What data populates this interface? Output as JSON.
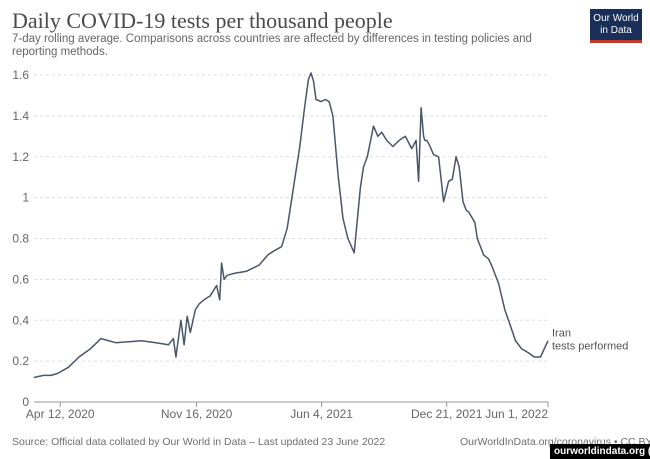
{
  "header": {
    "title": "Daily COVID-19 tests per thousand people",
    "subtitle": "7-day rolling average. Comparisons across countries are affected by differences in testing policies and reporting methods."
  },
  "logo": {
    "line1": "Our World",
    "line2": "in Data"
  },
  "footer": {
    "source": "Source: Official data collated by Our World in Data – Last updated 23 June 2022",
    "credit": "OurWorldInData.org/coronavirus • CC BY",
    "watermark": "ourworldindata.org ()"
  },
  "colors": {
    "line": "#4b5569",
    "grid": "#dddddd",
    "title": "#4a4a4a",
    "logo_bg": "#1a2e5a",
    "logo_accent": "#c0392b"
  },
  "chart_data": {
    "type": "line",
    "grid": true,
    "ylim": [
      0,
      1.6
    ],
    "yticks": [
      0,
      0.2,
      0.4,
      0.6,
      0.8,
      1,
      1.2,
      1.4,
      1.6
    ],
    "ytick_labels": [
      "0",
      "0.2",
      "0.4",
      "0.6",
      "0.8",
      "1",
      "1.2",
      "1.4",
      "1.6"
    ],
    "xlim": [
      "2020-03-01",
      "2022-06-01"
    ],
    "xticks": [
      "2020-04-12",
      "2020-11-16",
      "2021-06-04",
      "2021-12-21",
      "2022-06-01"
    ],
    "xtick_labels": [
      "Apr 12, 2020",
      "Nov 16, 2020",
      "Jun 4, 2021",
      "Dec 21, 2021",
      "Jun 1, 2022"
    ],
    "series": [
      {
        "name": "Iran",
        "label_line2": "tests performed",
        "x": [
          "2020-03-01",
          "2020-03-16",
          "2020-03-28",
          "2020-04-08",
          "2020-04-25",
          "2020-05-12",
          "2020-05-30",
          "2020-06-16",
          "2020-07-10",
          "2020-08-20",
          "2020-09-12",
          "2020-10-02",
          "2020-10-10",
          "2020-10-14",
          "2020-10-18",
          "2020-10-22",
          "2020-10-27",
          "2020-11-01",
          "2020-11-06",
          "2020-11-14",
          "2020-11-20",
          "2020-11-28",
          "2020-12-08",
          "2020-12-18",
          "2020-12-23",
          "2020-12-26",
          "2020-12-30",
          "2021-01-04",
          "2021-01-16",
          "2021-02-04",
          "2021-02-24",
          "2021-03-10",
          "2021-03-20",
          "2021-04-01",
          "2021-04-10",
          "2021-04-20",
          "2021-04-30",
          "2021-05-08",
          "2021-05-14",
          "2021-05-18",
          "2021-05-22",
          "2021-05-26",
          "2021-06-03",
          "2021-06-10",
          "2021-06-16",
          "2021-06-22",
          "2021-06-30",
          "2021-07-08",
          "2021-07-16",
          "2021-07-26",
          "2021-08-05",
          "2021-08-10",
          "2021-08-16",
          "2021-08-26",
          "2021-09-02",
          "2021-09-08",
          "2021-09-16",
          "2021-09-26",
          "2021-10-06",
          "2021-10-16",
          "2021-10-26",
          "2021-11-02",
          "2021-11-06",
          "2021-11-10",
          "2021-11-14",
          "2021-11-16",
          "2021-11-19",
          "2021-11-23",
          "2021-11-30",
          "2021-12-08",
          "2021-12-16",
          "2021-12-24",
          "2021-12-30",
          "2022-01-05",
          "2022-01-10",
          "2022-01-16",
          "2022-01-21",
          "2022-01-25",
          "2022-02-04",
          "2022-02-08",
          "2022-02-13",
          "2022-02-18",
          "2022-02-26",
          "2022-03-04",
          "2022-03-14",
          "2022-03-24",
          "2022-04-01",
          "2022-04-10",
          "2022-04-20",
          "2022-05-01",
          "2022-05-10",
          "2022-05-20",
          "2022-06-01"
        ],
        "y": [
          0.12,
          0.13,
          0.13,
          0.14,
          0.17,
          0.22,
          0.26,
          0.31,
          0.29,
          0.3,
          0.29,
          0.28,
          0.31,
          0.22,
          0.31,
          0.4,
          0.28,
          0.42,
          0.34,
          0.45,
          0.48,
          0.5,
          0.52,
          0.57,
          0.5,
          0.68,
          0.6,
          0.62,
          0.63,
          0.64,
          0.67,
          0.72,
          0.74,
          0.76,
          0.85,
          1.05,
          1.25,
          1.45,
          1.58,
          1.61,
          1.57,
          1.48,
          1.47,
          1.48,
          1.47,
          1.4,
          1.12,
          0.9,
          0.8,
          0.73,
          1.05,
          1.15,
          1.2,
          1.35,
          1.3,
          1.32,
          1.28,
          1.25,
          1.28,
          1.3,
          1.24,
          1.28,
          1.08,
          1.44,
          1.3,
          1.28,
          1.28,
          1.26,
          1.21,
          1.2,
          0.98,
          1.08,
          1.09,
          1.2,
          1.15,
          0.98,
          0.94,
          0.93,
          0.88,
          0.8,
          0.76,
          0.72,
          0.7,
          0.66,
          0.58,
          0.45,
          0.38,
          0.3,
          0.26,
          0.24,
          0.22,
          0.22,
          0.3
        ]
      }
    ]
  }
}
